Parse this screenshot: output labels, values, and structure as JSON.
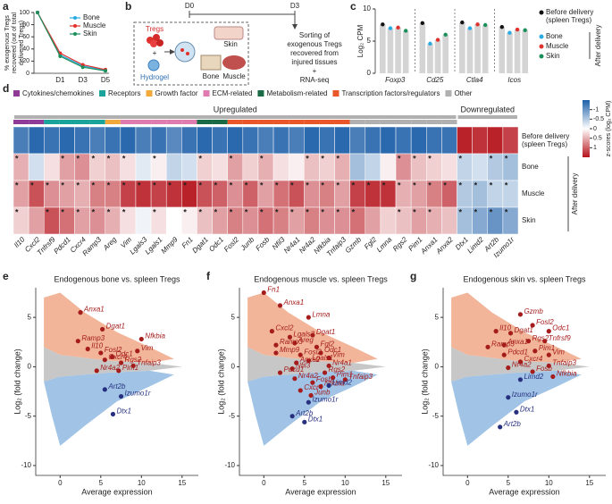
{
  "panel_labels": [
    "a",
    "b",
    "c",
    "d",
    "e",
    "f",
    "g"
  ],
  "diagram_b": {
    "days": [
      "D0",
      "D3"
    ],
    "tregs": "Tregs",
    "hydrogel": "Hydrogel",
    "tissues": [
      "Bone",
      "Skin",
      "Muscle"
    ],
    "sorting": [
      "Sorting of",
      "exogenous Tregs",
      "recovered from",
      "injured tissues",
      "+",
      "RNA-seq"
    ]
  },
  "chart_data": [
    {
      "type": "line",
      "ylabel": [
        "% exogenous Tregs",
        "recovered (out of total",
        "delivered Tregs)"
      ],
      "categories": [
        null,
        "D1",
        "D3",
        "D5"
      ],
      "series": [
        {
          "name": "Bone",
          "color": "#29abe2",
          "values": [
            100,
            30,
            12,
            5
          ]
        },
        {
          "name": "Muscle",
          "color": "#e0322d",
          "values": [
            100,
            33,
            14,
            6
          ]
        },
        {
          "name": "Skin",
          "color": "#1a8f5a",
          "values": [
            100,
            28,
            10,
            4
          ]
        }
      ],
      "ylim": [
        0,
        100
      ],
      "yticks": [
        0,
        20,
        40,
        60,
        80,
        100
      ]
    },
    {
      "type": "bar",
      "ylabel": "Log₂ CPM",
      "categories": [
        "Foxp3",
        "Cd25",
        "Ctla4",
        "Icos"
      ],
      "series": [
        {
          "name": "Before delivery (spleen Tregs)",
          "color": "#111111",
          "values": [
            7.6,
            7.8,
            7.9,
            7.2
          ]
        },
        {
          "name": "Bone",
          "color": "#29abe2",
          "values": [
            7.0,
            4.6,
            7.0,
            6.3
          ]
        },
        {
          "name": "Muscle",
          "color": "#e0322d",
          "values": [
            7.1,
            5.2,
            7.6,
            6.8
          ]
        },
        {
          "name": "Skin",
          "color": "#1a8f5a",
          "values": [
            6.6,
            6.0,
            7.5,
            6.7
          ]
        }
      ],
      "ylim": [
        0,
        10
      ],
      "yticks": [
        0,
        5,
        10
      ],
      "group_label": "After delivery",
      "bar_color": "#d4d4d4"
    },
    {
      "type": "heatmap",
      "categories": [
        {
          "name": "Cytokines/chemokines",
          "color": "#8e3a96"
        },
        {
          "name": "Receptors",
          "color": "#1aa39a"
        },
        {
          "name": "Growth factor",
          "color": "#f2a93b"
        },
        {
          "name": "ECM-related",
          "color": "#e07bb0"
        },
        {
          "name": "Metabolism-related",
          "color": "#1a6b45"
        },
        {
          "name": "Transcription factors/regulators",
          "color": "#e8562a"
        },
        {
          "name": "Other",
          "color": "#b0b0b0"
        }
      ],
      "column_groups": [
        "Upregulated",
        "Downregulated"
      ],
      "columns": [
        "Il10",
        "Cxcl2",
        "Tnfrsf9",
        "Pdcd1",
        "Cxcr4",
        "Ramp3",
        "Areg",
        "Vim",
        "Lgals3",
        "Lgals1",
        "Mmp9",
        "Fn1",
        "Dgat1",
        "Odc1",
        "Fosl2",
        "Junb",
        "Fosb",
        "Nfil3",
        "Nr4a1",
        "Nr4a2",
        "Nfkbia",
        "Tnfaip3",
        "Gzmb",
        "Fgl2",
        "Lmna",
        "Rgs2",
        "Pim1",
        "Anxa1",
        "Anxa2",
        "Dtx1",
        "Limd2",
        "Art2b",
        "Izumo1r"
      ],
      "column_category": [
        0,
        0,
        1,
        1,
        1,
        1,
        2,
        3,
        3,
        3,
        3,
        3,
        4,
        4,
        5,
        5,
        5,
        5,
        5,
        5,
        5,
        5,
        6,
        6,
        6,
        6,
        6,
        6,
        6,
        null,
        null,
        null,
        null
      ],
      "column_group": [
        0,
        0,
        0,
        0,
        0,
        0,
        0,
        0,
        0,
        0,
        0,
        0,
        0,
        0,
        0,
        0,
        0,
        0,
        0,
        0,
        0,
        0,
        0,
        0,
        0,
        0,
        0,
        0,
        0,
        1,
        1,
        1,
        1
      ],
      "rows": [
        "Before delivery (spleen Tregs)",
        "Bone",
        "Muscle",
        "Skin"
      ],
      "row_group_label": "After delivery",
      "values": [
        [
          -1.2,
          -1.4,
          -1.3,
          -1.4,
          -1.3,
          -1.2,
          -1.3,
          -1.4,
          -1.2,
          -1.3,
          -1.1,
          -1.3,
          -1.4,
          -1.3,
          -1.4,
          -1.3,
          -1.2,
          -1.3,
          -1.2,
          -1.4,
          -1.3,
          -1.4,
          -1.2,
          -1.3,
          -1.4,
          -1.3,
          -1.4,
          -1.3,
          -1.3,
          1.4,
          1.3,
          1.4,
          1.2
        ],
        [
          0.5,
          -0.3,
          0.2,
          0.6,
          0.7,
          0.3,
          0.4,
          0.2,
          -0.2,
          0.1,
          -0.4,
          -0.3,
          0.3,
          0.2,
          0.6,
          0.3,
          0.5,
          0.2,
          0.1,
          0.4,
          0.3,
          0.5,
          -0.6,
          -0.4,
          0.1,
          0.7,
          0.4,
          0.3,
          0.2,
          -0.4,
          -0.3,
          -0.5,
          -0.6
        ],
        [
          0.6,
          1.1,
          0.7,
          0.6,
          0.5,
          0.8,
          0.8,
          1.2,
          1.3,
          1.2,
          1.3,
          1.4,
          1.1,
          1.0,
          0.7,
          1.0,
          0.6,
          0.9,
          1.1,
          0.7,
          0.8,
          0.6,
          1.2,
          1.3,
          1.3,
          0.5,
          0.6,
          0.8,
          1.0,
          -0.5,
          -0.6,
          -0.4,
          -0.4
        ],
        [
          0.3,
          0.6,
          1.1,
          0.9,
          0.6,
          0.7,
          0.5,
          0.2,
          -0.1,
          0.2,
          0.0,
          0.1,
          0.4,
          0.6,
          0.8,
          0.7,
          0.9,
          0.8,
          0.6,
          0.8,
          0.7,
          0.7,
          0.9,
          0.6,
          0.3,
          0.4,
          0.6,
          0.5,
          0.4,
          -0.6,
          -0.8,
          -1.0,
          -0.8
        ]
      ],
      "stars": [
        [
          0,
          0,
          0,
          0,
          0,
          0,
          0,
          0,
          0,
          0,
          0,
          0,
          0,
          0,
          0,
          0,
          0,
          0,
          0,
          0,
          0,
          0,
          0,
          0,
          0,
          0,
          0,
          0,
          0,
          0,
          0,
          0,
          0
        ],
        [
          1,
          0,
          0,
          1,
          1,
          1,
          1,
          1,
          0,
          1,
          0,
          0,
          1,
          0,
          1,
          0,
          1,
          0,
          0,
          1,
          1,
          1,
          0,
          0,
          0,
          1,
          1,
          1,
          0,
          1,
          0,
          1,
          1
        ],
        [
          1,
          1,
          1,
          1,
          1,
          1,
          1,
          1,
          1,
          1,
          1,
          1,
          1,
          1,
          1,
          1,
          1,
          1,
          1,
          1,
          1,
          1,
          1,
          1,
          1,
          1,
          1,
          1,
          1,
          1,
          1,
          1,
          1
        ],
        [
          1,
          0,
          1,
          1,
          1,
          1,
          1,
          1,
          0,
          1,
          0,
          1,
          1,
          1,
          1,
          1,
          1,
          1,
          1,
          1,
          1,
          1,
          1,
          0,
          0,
          1,
          1,
          1,
          0,
          1,
          1,
          1,
          1
        ]
      ],
      "star_label": "*",
      "zlim": [
        -1.5,
        1.5
      ],
      "zticks": [
        -1,
        -0.5,
        0,
        0.5,
        1
      ],
      "colorbar_label": "z-scores (log₂ CPM)",
      "colors": {
        "low": "#1c5ea8",
        "high": "#b5121b"
      }
    },
    {
      "type": "ma",
      "title": "Endogenous bone vs. spleen Tregs",
      "xlabel": "Average expression",
      "ylabel": "Log₂ (fold change)",
      "xlim": [
        -3,
        17
      ],
      "ylim": [
        -11,
        8
      ],
      "xticks": [
        0,
        5,
        10,
        15
      ],
      "yticks": [
        -10,
        -5,
        0,
        5
      ],
      "colors": {
        "up": "#a51c1c",
        "down": "#26307f"
      },
      "points": [
        {
          "name": "Anxa1",
          "x": 2.5,
          "y": 5.5,
          "group": "up"
        },
        {
          "name": "Dgat1",
          "x": 5.2,
          "y": 3.8,
          "group": "up"
        },
        {
          "name": "Ramp3",
          "x": 2.2,
          "y": 2.6,
          "group": "up"
        },
        {
          "name": "Il10",
          "x": 3.4,
          "y": 1.8,
          "group": "up"
        },
        {
          "name": "Fosl2",
          "x": 5.0,
          "y": 1.4,
          "group": "up"
        },
        {
          "name": "Cxcr4",
          "x": 5.5,
          "y": 0.7,
          "group": "up"
        },
        {
          "name": "Odc1",
          "x": 6.4,
          "y": 1.0,
          "group": "up"
        },
        {
          "name": "Nfkbia",
          "x": 10,
          "y": 2.8,
          "group": "up"
        },
        {
          "name": "Vim",
          "x": 9.5,
          "y": 1.6,
          "group": "up"
        },
        {
          "name": "Rgs2",
          "x": 7.5,
          "y": 0.4,
          "group": "up"
        },
        {
          "name": "Tnfaip3",
          "x": 9,
          "y": 0.1,
          "group": "up"
        },
        {
          "name": "Nr4a2",
          "x": 4.5,
          "y": -0.4,
          "group": "up"
        },
        {
          "name": "Pim1",
          "x": 7.2,
          "y": -0.4,
          "group": "up"
        },
        {
          "name": "Art2b",
          "x": 5.5,
          "y": -2.3,
          "group": "down"
        },
        {
          "name": "Izumo1r",
          "x": 7.5,
          "y": -3.0,
          "group": "down"
        },
        {
          "name": "Dtx1",
          "x": 6.5,
          "y": -4.8,
          "group": "down"
        }
      ]
    },
    {
      "type": "ma",
      "title": "Endogenous muscle vs. spleen Tregs",
      "xlabel": "Average expression",
      "ylabel": "Log₂ (fold change)",
      "xlim": [
        -3,
        17
      ],
      "ylim": [
        -11,
        8
      ],
      "xticks": [
        0,
        5,
        10,
        15
      ],
      "yticks": [
        -10,
        -5,
        0,
        5
      ],
      "colors": {
        "up": "#a51c1c",
        "down": "#26307f"
      },
      "points": [
        {
          "name": "Fn1",
          "x": 0,
          "y": 7.5,
          "group": "up"
        },
        {
          "name": "Anxa1",
          "x": 2,
          "y": 6.2,
          "group": "up"
        },
        {
          "name": "Lmna",
          "x": 5.5,
          "y": 5.0,
          "group": "up"
        },
        {
          "name": "Cxcl2",
          "x": 1,
          "y": 3.6,
          "group": "up"
        },
        {
          "name": "Lgals3",
          "x": 3.2,
          "y": 3.0,
          "group": "up"
        },
        {
          "name": "Areg",
          "x": 3.8,
          "y": 2.4,
          "group": "up"
        },
        {
          "name": "Dgat1",
          "x": 6,
          "y": 3.2,
          "group": "up"
        },
        {
          "name": "Ramp3",
          "x": 1.5,
          "y": 2.2,
          "group": "up"
        },
        {
          "name": "Fgl2",
          "x": 6.5,
          "y": 2.0,
          "group": "up"
        },
        {
          "name": "Mmp9",
          "x": 1.5,
          "y": 1.4,
          "group": "up"
        },
        {
          "name": "Fosl2",
          "x": 4.5,
          "y": 1.2,
          "group": "up"
        },
        {
          "name": "Odc1",
          "x": 7,
          "y": 1.4,
          "group": "up"
        },
        {
          "name": "Anxa2",
          "x": 4,
          "y": 0.4,
          "group": "up"
        },
        {
          "name": "Lgals1",
          "x": 5.5,
          "y": 0.6,
          "group": "up"
        },
        {
          "name": "Vim",
          "x": 8,
          "y": 0.9,
          "group": "up"
        },
        {
          "name": "Nfil3",
          "x": 3.5,
          "y": -0.2,
          "group": "up"
        },
        {
          "name": "Nr4a1",
          "x": 8,
          "y": 0.1,
          "group": "up"
        },
        {
          "name": "Pdcd1",
          "x": 2,
          "y": -0.6,
          "group": "up"
        },
        {
          "name": "Rgs2",
          "x": 7.5,
          "y": -0.6,
          "group": "up"
        },
        {
          "name": "Pim1",
          "x": 8.5,
          "y": -1.1,
          "group": "up"
        },
        {
          "name": "Nr4a2",
          "x": 3.8,
          "y": -1.2,
          "group": "up"
        },
        {
          "name": "Fosb",
          "x": 6,
          "y": -1.6,
          "group": "up"
        },
        {
          "name": "Nfkbia",
          "x": 7,
          "y": -2.0,
          "group": "up"
        },
        {
          "name": "Tnfaip3",
          "x": 10,
          "y": -1.3,
          "group": "up"
        },
        {
          "name": "Cxcr4",
          "x": 4.5,
          "y": -2.4,
          "group": "up"
        },
        {
          "name": "Junb",
          "x": 5.8,
          "y": -2.9,
          "group": "up"
        },
        {
          "name": "Limd2",
          "x": 8,
          "y": -1.9,
          "group": "down"
        },
        {
          "name": "Izumo1r",
          "x": 5.5,
          "y": -3.6,
          "group": "down"
        },
        {
          "name": "Art2b",
          "x": 3.5,
          "y": -5.0,
          "group": "down"
        },
        {
          "name": "Dtx1",
          "x": 5,
          "y": -5.6,
          "group": "down"
        }
      ]
    },
    {
      "type": "ma",
      "title": "Endogenous skin vs. spleen Tregs",
      "xlabel": "Average expression",
      "ylabel": "Log₂ (fold change)",
      "xlim": [
        -3,
        17
      ],
      "ylim": [
        -11,
        8
      ],
      "xticks": [
        0,
        5,
        10,
        15
      ],
      "yticks": [
        -10,
        -5,
        0,
        5
      ],
      "colors": {
        "up": "#a51c1c",
        "down": "#26307f"
      },
      "points": [
        {
          "name": "Gzmb",
          "x": 6.5,
          "y": 5.3,
          "group": "up"
        },
        {
          "name": "Fosl2",
          "x": 8,
          "y": 4.2,
          "group": "up"
        },
        {
          "name": "Odc1",
          "x": 10,
          "y": 3.6,
          "group": "up"
        },
        {
          "name": "Il10",
          "x": 3.5,
          "y": 3.6,
          "group": "up"
        },
        {
          "name": "Dgat1",
          "x": 5.3,
          "y": 3.4,
          "group": "up"
        },
        {
          "name": "Tnfrsf9",
          "x": 9.5,
          "y": 2.6,
          "group": "up"
        },
        {
          "name": "Ramp3",
          "x": 2.5,
          "y": 2.0,
          "group": "up"
        },
        {
          "name": "Anxa1",
          "x": 4.5,
          "y": 2.2,
          "group": "up"
        },
        {
          "name": "Rgs2",
          "x": 7.5,
          "y": 2.6,
          "group": "up"
        },
        {
          "name": "Pim1",
          "x": 8.3,
          "y": 1.6,
          "group": "up"
        },
        {
          "name": "Vim",
          "x": 10,
          "y": 1.2,
          "group": "up"
        },
        {
          "name": "Pdcd1",
          "x": 4.5,
          "y": 1.2,
          "group": "up"
        },
        {
          "name": "Cxcr4",
          "x": 6.5,
          "y": 0.5,
          "group": "up"
        },
        {
          "name": "Nr4a2",
          "x": 5,
          "y": -0.1,
          "group": "up"
        },
        {
          "name": "Tnfaip3",
          "x": 10,
          "y": 0.1,
          "group": "up"
        },
        {
          "name": "Fosb",
          "x": 8,
          "y": -0.5,
          "group": "up"
        },
        {
          "name": "Nfkbia",
          "x": 10.5,
          "y": -1.0,
          "group": "up"
        },
        {
          "name": "Limd2",
          "x": 6.5,
          "y": -1.3,
          "group": "down"
        },
        {
          "name": "Izumo1r",
          "x": 5,
          "y": -3.1,
          "group": "down"
        },
        {
          "name": "Dtx1",
          "x": 6,
          "y": -4.6,
          "group": "down"
        },
        {
          "name": "Art2b",
          "x": 4,
          "y": -6.1,
          "group": "down"
        }
      ]
    }
  ]
}
